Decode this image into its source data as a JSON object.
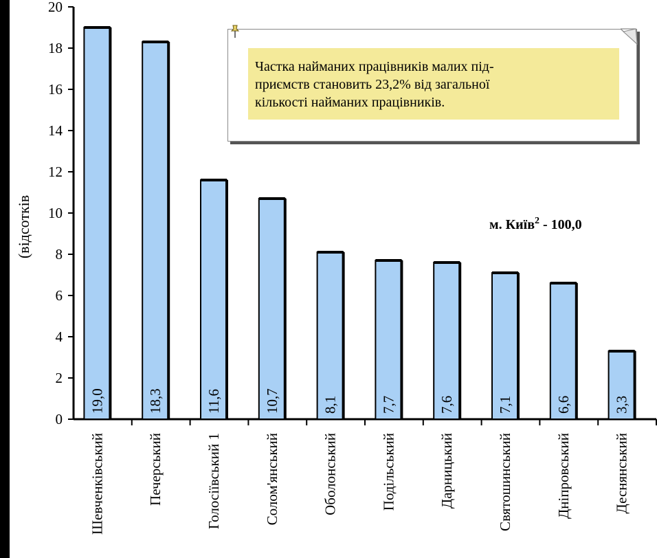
{
  "chart_data": {
    "type": "bar",
    "ylabel": "(відсотків",
    "ylim": [
      0,
      20
    ],
    "yticks": [
      "0",
      "2",
      "4",
      "6",
      "8",
      "10",
      "12",
      "14",
      "16",
      "18",
      "20"
    ],
    "categories": [
      "Шевченківський",
      "Печерський",
      "Голосіївський 1",
      "Солом'янський",
      "Оболонський",
      "Подільський",
      "Дарницький",
      "Святошинський",
      "Дніпровський",
      "Деснянський"
    ],
    "values": [
      19.0,
      18.3,
      11.6,
      10.7,
      8.1,
      7.7,
      7.6,
      7.1,
      6.6,
      3.3
    ],
    "value_labels": [
      "19,0",
      "18,3",
      "11,6",
      "10,7",
      "8,1",
      "7,7",
      "7,6",
      "7,1",
      "6,6",
      "3,3"
    ],
    "bar_color": "#a9d0f5",
    "bar_outline": "#000000",
    "annotation": {
      "total_label": "м. Київ² - 100,0",
      "note_lines": [
        "Частка найманих працівників малих під-",
        "приємств становить 23,2% від загальної",
        "кількості найманих працівників."
      ],
      "note_bg": "#f4ea9a"
    }
  }
}
